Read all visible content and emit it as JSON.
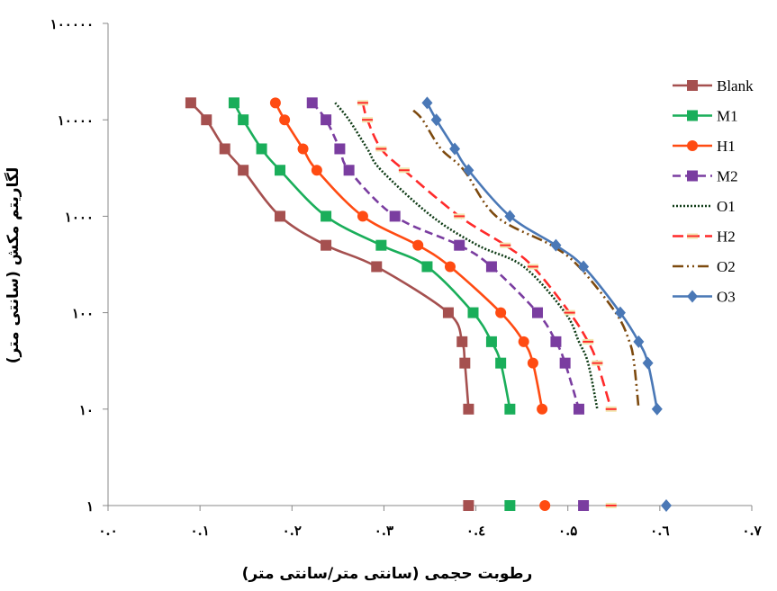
{
  "chart_data": {
    "type": "line",
    "xlabel": "رطوبت حجمی (سانتی متر/سانتی متر)",
    "ylabel": "لگاریتم مکش (سانتی متر)",
    "x_ticks": [
      {
        "value": 0.0,
        "label": "۰.۰"
      },
      {
        "value": 0.1,
        "label": "۰.۱"
      },
      {
        "value": 0.2,
        "label": "۰.۲"
      },
      {
        "value": 0.3,
        "label": "۰.۳"
      },
      {
        "value": 0.4,
        "label": "۰.٤"
      },
      {
        "value": 0.5,
        "label": "۰.۵"
      },
      {
        "value": 0.6,
        "label": "۰.٦"
      },
      {
        "value": 0.7,
        "label": "۰.۷"
      }
    ],
    "y_ticks": [
      {
        "value": 1,
        "label": "۱"
      },
      {
        "value": 10,
        "label": "۱۰"
      },
      {
        "value": 100,
        "label": "۱۰۰"
      },
      {
        "value": 1000,
        "label": "۱۰۰۰"
      },
      {
        "value": 10000,
        "label": "۱۰۰۰۰"
      },
      {
        "value": 100000,
        "label": "۱۰۰۰۰۰"
      }
    ],
    "xlim": [
      0,
      0.7
    ],
    "ylim": [
      1,
      100000
    ],
    "yscale": "log",
    "grid": false,
    "legend_position": "right",
    "series": [
      {
        "name": "Blank",
        "color": "#A5504F",
        "dash": "",
        "marker": "square",
        "points": [
          [
            0.09,
            15000
          ],
          [
            0.107,
            10000
          ],
          [
            0.127,
            5000
          ],
          [
            0.147,
            3000
          ],
          [
            0.187,
            1000
          ],
          [
            0.237,
            500
          ],
          [
            0.292,
            300
          ],
          [
            0.37,
            100
          ],
          [
            0.385,
            50
          ],
          [
            0.388,
            30
          ],
          [
            0.392,
            10
          ]
        ],
        "x1": 0.392
      },
      {
        "name": "M1",
        "color": "#1AAE5A",
        "dash": "",
        "marker": "square",
        "points": [
          [
            0.137,
            15000
          ],
          [
            0.147,
            10000
          ],
          [
            0.167,
            5000
          ],
          [
            0.187,
            3000
          ],
          [
            0.237,
            1000
          ],
          [
            0.297,
            500
          ],
          [
            0.347,
            300
          ],
          [
            0.397,
            100
          ],
          [
            0.417,
            50
          ],
          [
            0.427,
            30
          ],
          [
            0.437,
            10
          ]
        ],
        "x1": 0.437
      },
      {
        "name": "H1",
        "color": "#FF4B12",
        "dash": "",
        "marker": "circle",
        "points": [
          [
            0.182,
            15000
          ],
          [
            0.192,
            10000
          ],
          [
            0.212,
            5000
          ],
          [
            0.227,
            3000
          ],
          [
            0.277,
            1000
          ],
          [
            0.337,
            500
          ],
          [
            0.372,
            300
          ],
          [
            0.427,
            100
          ],
          [
            0.452,
            50
          ],
          [
            0.462,
            30
          ],
          [
            0.472,
            10
          ]
        ],
        "x1": 0.475
      },
      {
        "name": "M2",
        "color": "#7A3DA0",
        "dash": "9,5",
        "marker": "square",
        "points": [
          [
            0.222,
            15000
          ],
          [
            0.237,
            10000
          ],
          [
            0.252,
            5000
          ],
          [
            0.262,
            3000
          ],
          [
            0.312,
            1000
          ],
          [
            0.382,
            500
          ],
          [
            0.417,
            300
          ],
          [
            0.467,
            100
          ],
          [
            0.487,
            50
          ],
          [
            0.497,
            30
          ],
          [
            0.512,
            10
          ]
        ],
        "x1": 0.517
      },
      {
        "name": "O1",
        "color": "#0E3B15",
        "dash": "2,2",
        "marker": "none",
        "points": [
          [
            0.247,
            15000
          ],
          [
            0.262,
            10000
          ],
          [
            0.282,
            5000
          ],
          [
            0.297,
            3000
          ],
          [
            0.352,
            1000
          ],
          [
            0.402,
            500
          ],
          [
            0.452,
            300
          ],
          [
            0.497,
            100
          ],
          [
            0.512,
            50
          ],
          [
            0.522,
            30
          ],
          [
            0.532,
            10
          ]
        ],
        "x1": 0.537
      },
      {
        "name": "H2",
        "color": "#FF2A2A",
        "dash": "12,6",
        "marker": "dash",
        "points": [
          [
            0.277,
            15000
          ],
          [
            0.282,
            10000
          ],
          [
            0.297,
            5000
          ],
          [
            0.322,
            3000
          ],
          [
            0.382,
            1000
          ],
          [
            0.432,
            500
          ],
          [
            0.462,
            300
          ],
          [
            0.502,
            100
          ],
          [
            0.522,
            50
          ],
          [
            0.532,
            30
          ],
          [
            0.547,
            10
          ]
        ],
        "x1": 0.547
      },
      {
        "name": "O2",
        "color": "#7D4A0F",
        "dash": "12,4,2,4,2,4",
        "marker": "none",
        "points": [
          [
            0.332,
            12500
          ],
          [
            0.342,
            10000
          ],
          [
            0.362,
            5000
          ],
          [
            0.387,
            3000
          ],
          [
            0.422,
            1000
          ],
          [
            0.482,
            500
          ],
          [
            0.512,
            300
          ],
          [
            0.552,
            100
          ],
          [
            0.567,
            50
          ],
          [
            0.572,
            30
          ],
          [
            0.577,
            10
          ]
        ],
        "x1": 0.577
      },
      {
        "name": "O3",
        "color": "#4A78B6",
        "dash": "",
        "marker": "diamond",
        "points": [
          [
            0.347,
            15000
          ],
          [
            0.357,
            10000
          ],
          [
            0.377,
            5000
          ],
          [
            0.392,
            3000
          ],
          [
            0.437,
            1000
          ],
          [
            0.487,
            500
          ],
          [
            0.517,
            300
          ],
          [
            0.557,
            100
          ],
          [
            0.577,
            50
          ],
          [
            0.587,
            30
          ],
          [
            0.597,
            10
          ]
        ],
        "x1": 0.607
      }
    ]
  }
}
